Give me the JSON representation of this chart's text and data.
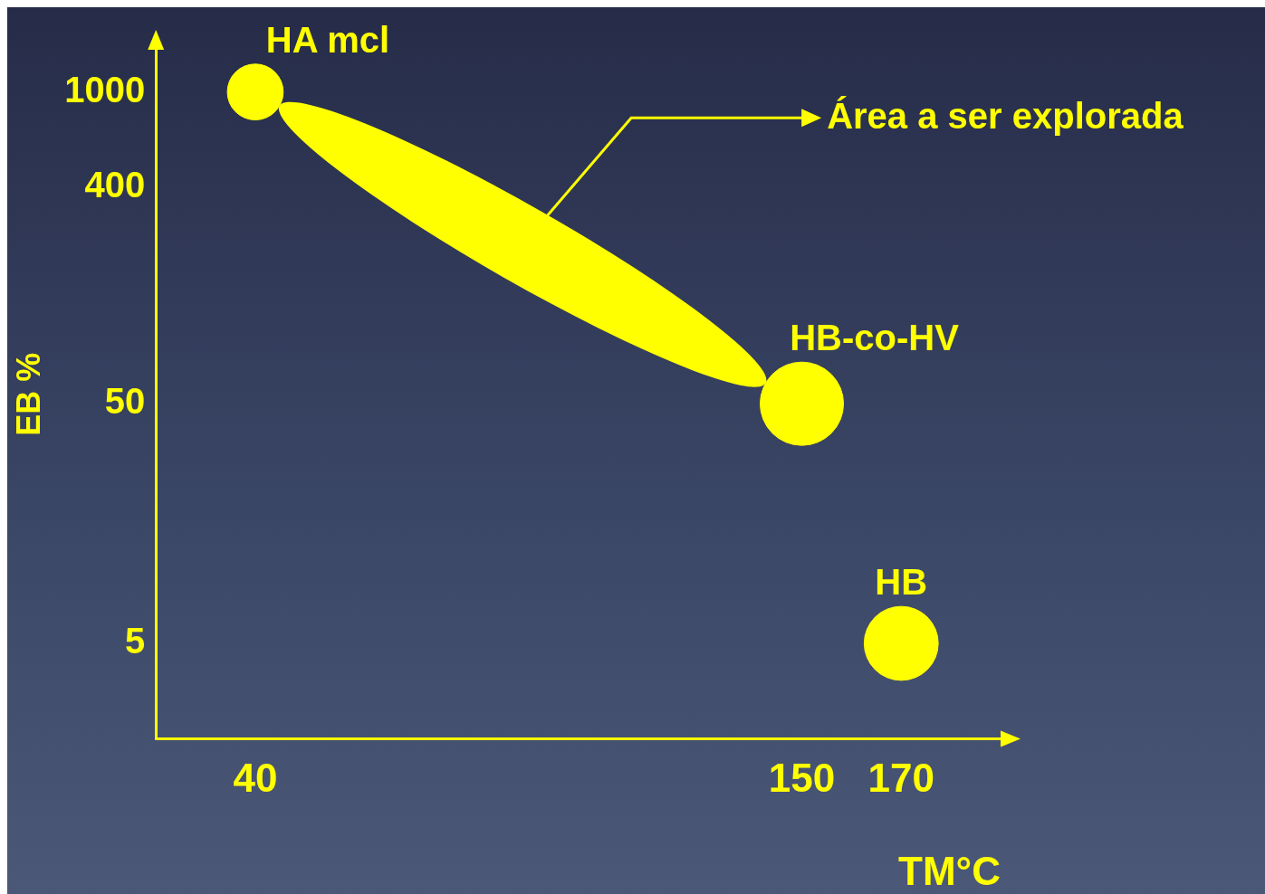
{
  "chart_data": {
    "type": "bubble",
    "xlabel": "TM°C",
    "ylabel": "EB %",
    "xlim": [
      20,
      190
    ],
    "xticks": [
      40,
      150,
      170
    ],
    "ylim": [
      2,
      1500
    ],
    "yticks": [
      5,
      50,
      400,
      1000
    ],
    "log": "y",
    "grid": false,
    "legend": false,
    "annotations": [
      "Área a ser explorada"
    ],
    "series": [
      {
        "name": "HA mcl",
        "color": "#ffff00",
        "x": [
          40
        ],
        "values": [
          1000
        ],
        "sizes": [
          0.45
        ]
      },
      {
        "name": "HB-co-HV",
        "color": "#ffff00",
        "x": [
          150
        ],
        "values": [
          50
        ],
        "sizes": [
          1
        ]
      },
      {
        "name": "HB",
        "color": "#ffff00",
        "x": [
          170
        ],
        "values": [
          5
        ],
        "sizes": [
          0.79
        ]
      }
    ]
  }
}
